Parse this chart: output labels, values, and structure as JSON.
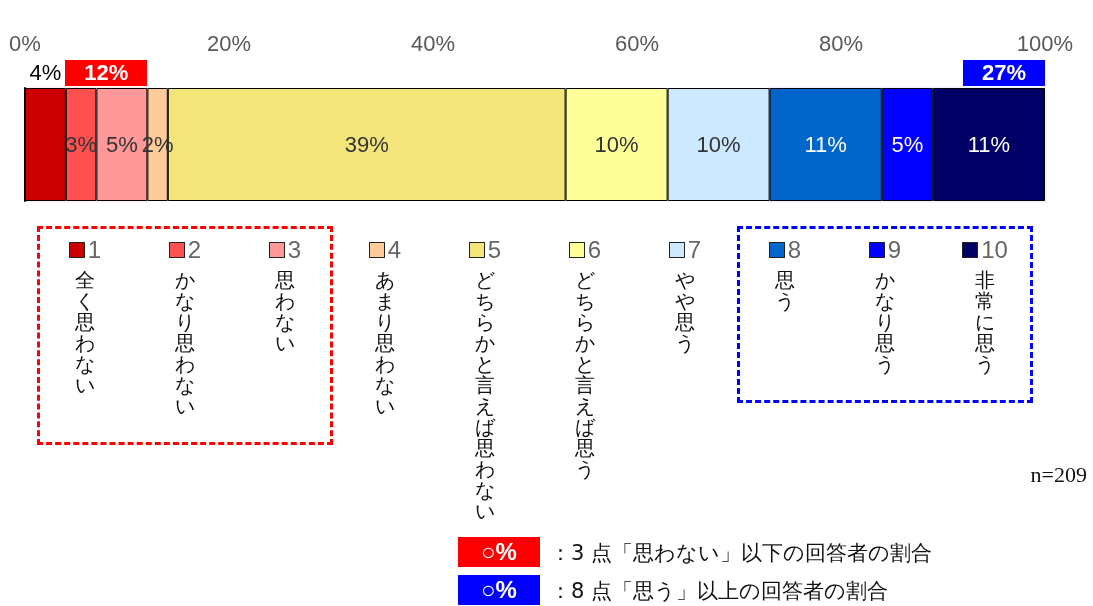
{
  "chart_data": {
    "type": "bar",
    "orientation": "horizontal",
    "stacked": true,
    "categories": [
      null
    ],
    "xlim": [
      0,
      100
    ],
    "xticks": [
      {
        "value": 0,
        "label": "0%"
      },
      {
        "value": 20,
        "label": "20%"
      },
      {
        "value": 40,
        "label": "40%"
      },
      {
        "value": 60,
        "label": "60%"
      },
      {
        "value": 80,
        "label": "80%"
      },
      {
        "value": 100,
        "label": "100%"
      }
    ],
    "series": [
      {
        "name": "1全く思わない",
        "color": "#cc0000",
        "values": [
          4
        ],
        "value_labels": [
          "4%"
        ]
      },
      {
        "name": "2かなり思わない",
        "color": "#ff5050",
        "values": [
          3
        ],
        "value_labels": [
          "3%"
        ]
      },
      {
        "name": "3思わない",
        "color": "#ff9999",
        "values": [
          5
        ],
        "value_labels": [
          "5%"
        ]
      },
      {
        "name": "4あまり思わない",
        "color": "#ffcc99",
        "values": [
          2
        ],
        "value_labels": [
          "2%"
        ]
      },
      {
        "name": "5どちらかと言えば思わない",
        "color": "#f4e57a",
        "values": [
          39
        ],
        "value_labels": [
          "39%"
        ]
      },
      {
        "name": "6どちらかと言えば思う",
        "color": "#ffff99",
        "values": [
          10
        ],
        "value_labels": [
          "10%"
        ]
      },
      {
        "name": "7やや思う",
        "color": "#cce9ff",
        "values": [
          10
        ],
        "value_labels": [
          "10%"
        ]
      },
      {
        "name": "8思う",
        "color": "#0066cc",
        "values": [
          11
        ],
        "value_labels": [
          "11%"
        ]
      },
      {
        "name": "9かなり思う",
        "color": "#0000ff",
        "values": [
          5
        ],
        "value_labels": [
          "5%"
        ]
      },
      {
        "name": "10非常に思う",
        "color": "#000066",
        "values": [
          11
        ],
        "value_labels": [
          "11%"
        ]
      }
    ],
    "bands": [
      {
        "axis": "x",
        "from": 0,
        "to": 12,
        "label": "12%",
        "color": "#ff0000"
      },
      {
        "axis": "x",
        "from": 73,
        "to": 100,
        "label": "27%",
        "color": "#0000ff"
      }
    ],
    "legend": "bottom",
    "annotations": [
      "n=209",
      "○%",
      "：3 点「思わない」以下の回答者の割合",
      "○%",
      "：8 点「思う」以上の回答者の割合"
    ]
  }
}
